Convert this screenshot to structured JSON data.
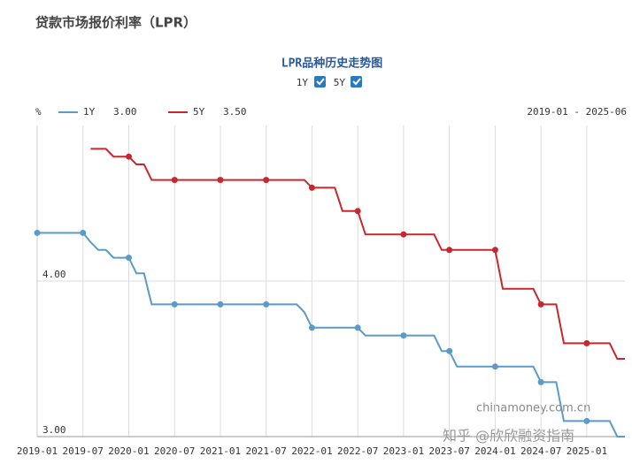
{
  "header": "贷款市场报价利率（LPR）",
  "chart_data": {
    "type": "line",
    "title": "LPR品种历史走势图",
    "y_unit": "%",
    "date_range": "2019-01 - 2025-06",
    "x": [
      "2019-01",
      "2019-02",
      "2019-03",
      "2019-04",
      "2019-05",
      "2019-06",
      "2019-07",
      "2019-08",
      "2019-09",
      "2019-10",
      "2019-11",
      "2019-12",
      "2020-01",
      "2020-02",
      "2020-03",
      "2020-04",
      "2020-05",
      "2020-06",
      "2020-07",
      "2020-08",
      "2020-09",
      "2020-10",
      "2020-11",
      "2020-12",
      "2021-01",
      "2021-02",
      "2021-03",
      "2021-04",
      "2021-05",
      "2021-06",
      "2021-07",
      "2021-08",
      "2021-09",
      "2021-10",
      "2021-11",
      "2021-12",
      "2022-01",
      "2022-02",
      "2022-03",
      "2022-04",
      "2022-05",
      "2022-06",
      "2022-07",
      "2022-08",
      "2022-09",
      "2022-10",
      "2022-11",
      "2022-12",
      "2023-01",
      "2023-02",
      "2023-03",
      "2023-04",
      "2023-05",
      "2023-06",
      "2023-07",
      "2023-08",
      "2023-09",
      "2023-10",
      "2023-11",
      "2023-12",
      "2024-01",
      "2024-02",
      "2024-03",
      "2024-04",
      "2024-05",
      "2024-06",
      "2024-07",
      "2024-08",
      "2024-09",
      "2024-10",
      "2024-11",
      "2024-12",
      "2025-01",
      "2025-02",
      "2025-03",
      "2025-04",
      "2025-05",
      "2025-06"
    ],
    "series": [
      {
        "name": "1Y",
        "latest_label": "3.00",
        "color": "#5b9bc8",
        "values": [
          4.31,
          4.31,
          4.31,
          4.31,
          4.31,
          4.31,
          4.31,
          4.25,
          4.2,
          4.2,
          4.15,
          4.15,
          4.15,
          4.05,
          4.05,
          3.85,
          3.85,
          3.85,
          3.85,
          3.85,
          3.85,
          3.85,
          3.85,
          3.85,
          3.85,
          3.85,
          3.85,
          3.85,
          3.85,
          3.85,
          3.85,
          3.85,
          3.85,
          3.85,
          3.85,
          3.8,
          3.7,
          3.7,
          3.7,
          3.7,
          3.7,
          3.7,
          3.7,
          3.65,
          3.65,
          3.65,
          3.65,
          3.65,
          3.65,
          3.65,
          3.65,
          3.65,
          3.65,
          3.55,
          3.55,
          3.45,
          3.45,
          3.45,
          3.45,
          3.45,
          3.45,
          3.45,
          3.45,
          3.45,
          3.45,
          3.45,
          3.35,
          3.35,
          3.35,
          3.1,
          3.1,
          3.1,
          3.1,
          3.1,
          3.1,
          3.1,
          3.0,
          3.0
        ]
      },
      {
        "name": "5Y",
        "latest_label": "3.50",
        "color": "#c8282d",
        "values": [
          null,
          null,
          null,
          null,
          null,
          null,
          null,
          4.85,
          4.85,
          4.85,
          4.8,
          4.8,
          4.8,
          4.75,
          4.75,
          4.65,
          4.65,
          4.65,
          4.65,
          4.65,
          4.65,
          4.65,
          4.65,
          4.65,
          4.65,
          4.65,
          4.65,
          4.65,
          4.65,
          4.65,
          4.65,
          4.65,
          4.65,
          4.65,
          4.65,
          4.65,
          4.6,
          4.6,
          4.6,
          4.6,
          4.45,
          4.45,
          4.45,
          4.3,
          4.3,
          4.3,
          4.3,
          4.3,
          4.3,
          4.3,
          4.3,
          4.3,
          4.3,
          4.2,
          4.2,
          4.2,
          4.2,
          4.2,
          4.2,
          4.2,
          4.2,
          3.95,
          3.95,
          3.95,
          3.95,
          3.95,
          3.85,
          3.85,
          3.85,
          3.6,
          3.6,
          3.6,
          3.6,
          3.6,
          3.6,
          3.6,
          3.5,
          3.5
        ]
      }
    ],
    "xticks": [
      "2019-01",
      "2019-07",
      "2020-01",
      "2020-07",
      "2021-01",
      "2021-07",
      "2022-01",
      "2022-07",
      "2023-01",
      "2023-07",
      "2024-01",
      "2024-07",
      "2025-01"
    ],
    "ylim": [
      3,
      5
    ],
    "yticks": [
      {
        "value": 3,
        "label": "3.00"
      },
      {
        "value": 4,
        "label": "4.00"
      }
    ],
    "grid": true
  },
  "watermark": {
    "site": "chinamoney.com.cn",
    "credit": "知乎 @欣欣融资指南"
  }
}
